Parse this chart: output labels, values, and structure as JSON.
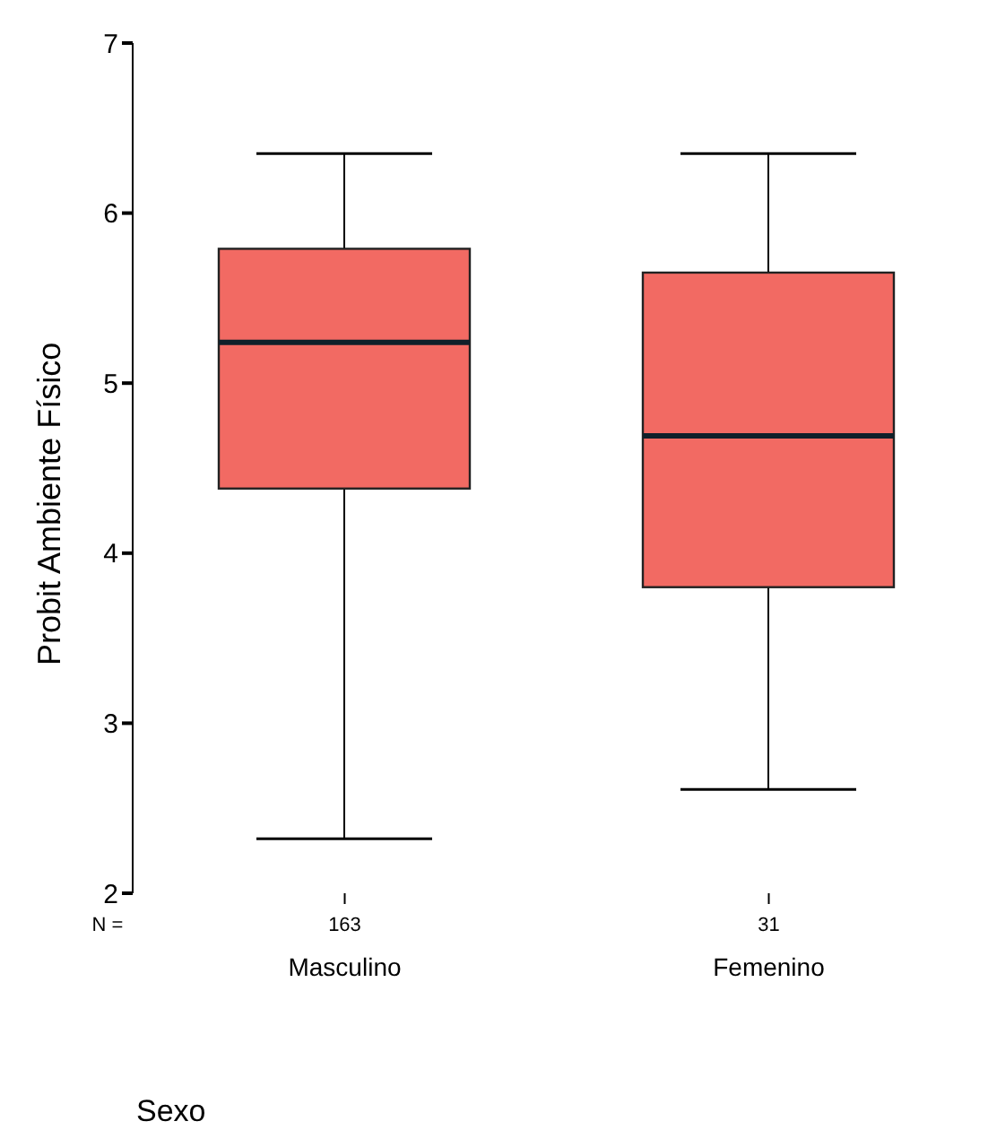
{
  "chart_data": {
    "type": "box",
    "xlabel": "Sexo",
    "ylabel": "Probit Ambiente Físico",
    "categories": [
      "Masculino",
      "Femenino"
    ],
    "series": [
      {
        "color": "#f26a63",
        "boxes": [
          {
            "low": 2.32,
            "q1": 4.38,
            "median": 5.24,
            "q3": 5.79,
            "high": 6.35
          },
          {
            "low": 2.61,
            "q1": 3.8,
            "median": 4.69,
            "q3": 5.65,
            "high": 6.35
          }
        ]
      }
    ],
    "ylim": [
      2,
      7
    ],
    "yticks": [
      2,
      3,
      4,
      5,
      6,
      7
    ],
    "annotations": [
      "N =",
      "163",
      "31"
    ]
  }
}
